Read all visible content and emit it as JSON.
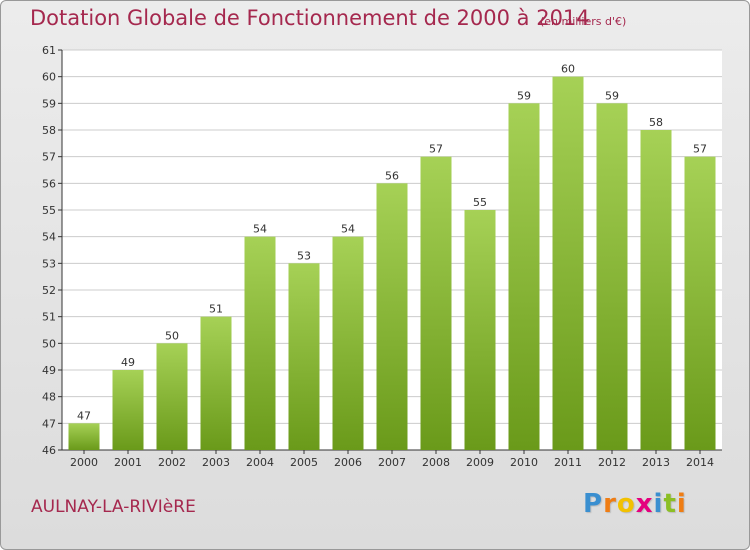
{
  "chart_data": {
    "type": "bar",
    "title": "Dotation Globale de Fonctionnement de 2000 à 2014",
    "subtitle": "(en milliers d'€)",
    "xlabel": "",
    "ylabel": "",
    "categories": [
      "2000",
      "2001",
      "2002",
      "2003",
      "2004",
      "2005",
      "2006",
      "2007",
      "2008",
      "2009",
      "2010",
      "2011",
      "2012",
      "2013",
      "2014"
    ],
    "values": [
      47,
      49,
      50,
      51,
      54,
      53,
      54,
      56,
      57,
      55,
      59,
      60,
      59,
      58,
      57
    ],
    "ylim": [
      46,
      61
    ],
    "yticks": [
      46,
      47,
      48,
      49,
      50,
      51,
      52,
      53,
      54,
      55,
      56,
      57,
      58,
      59,
      60,
      61
    ],
    "grid": true,
    "legend": "none",
    "bar_color_top": "#a6d156",
    "bar_color_bottom": "#6a9a1a"
  },
  "footer": {
    "commune": "AULNAY-LA-RIVIèRE",
    "logo_text": "Proxiti",
    "logo_colors": [
      "#3a8fd0",
      "#ef7d14",
      "#f2c100",
      "#e5007e",
      "#3a8fd0",
      "#8cbf24",
      "#ef7d14"
    ]
  },
  "colors": {
    "title": "#a5284e",
    "axis": "#333333",
    "grid": "#cccccc"
  }
}
